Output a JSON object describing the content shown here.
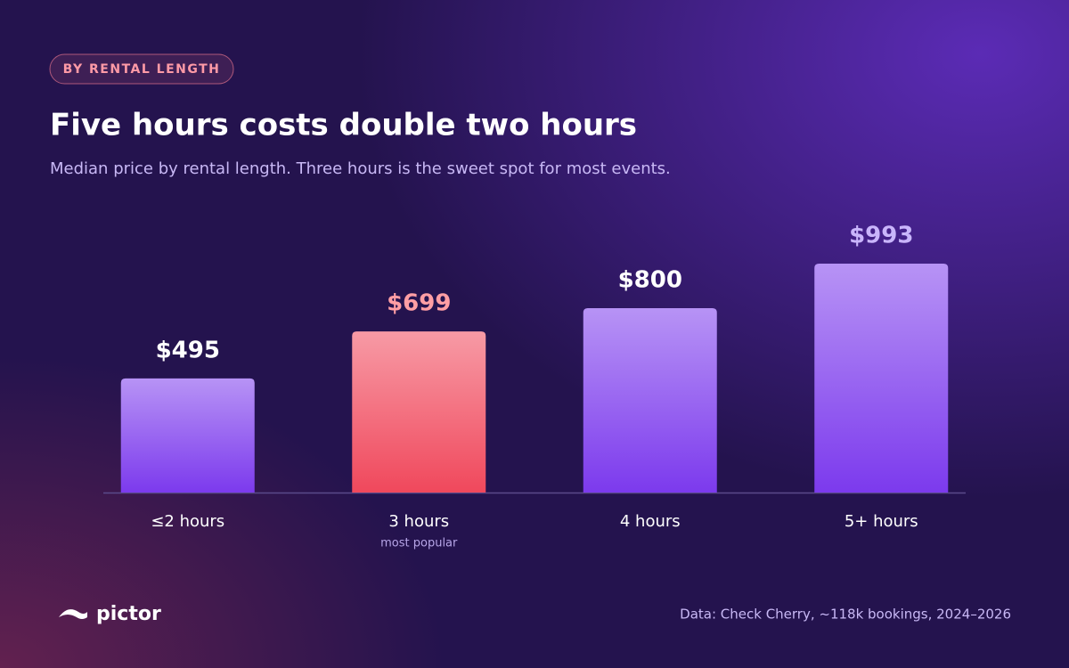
{
  "badge": "BY RENTAL LENGTH",
  "brand": "pictor",
  "source": "Data: Check Cherry, ~118k bookings, 2024–2026",
  "chart_data": {
    "type": "bar",
    "title": "Five hours costs double two hours",
    "subtitle": "Median price by rental length. Three hours is the sweet spot for most events.",
    "categories": [
      "≤2 hours",
      "3 hours",
      "4 hours",
      "5+ hours"
    ],
    "category_notes": [
      null,
      "most popular",
      null,
      null
    ],
    "values": [
      495,
      699,
      800,
      993
    ],
    "value_labels": [
      "$495",
      "$699",
      "$800",
      "$993"
    ],
    "colors": [
      "#7c3aed",
      "#f0485c",
      "#7c3aed",
      "#7c3aed"
    ],
    "value_label_colors": [
      "#ffffff",
      "#ff9ea4",
      "#ffffff",
      "#c9b5fb"
    ]
  }
}
